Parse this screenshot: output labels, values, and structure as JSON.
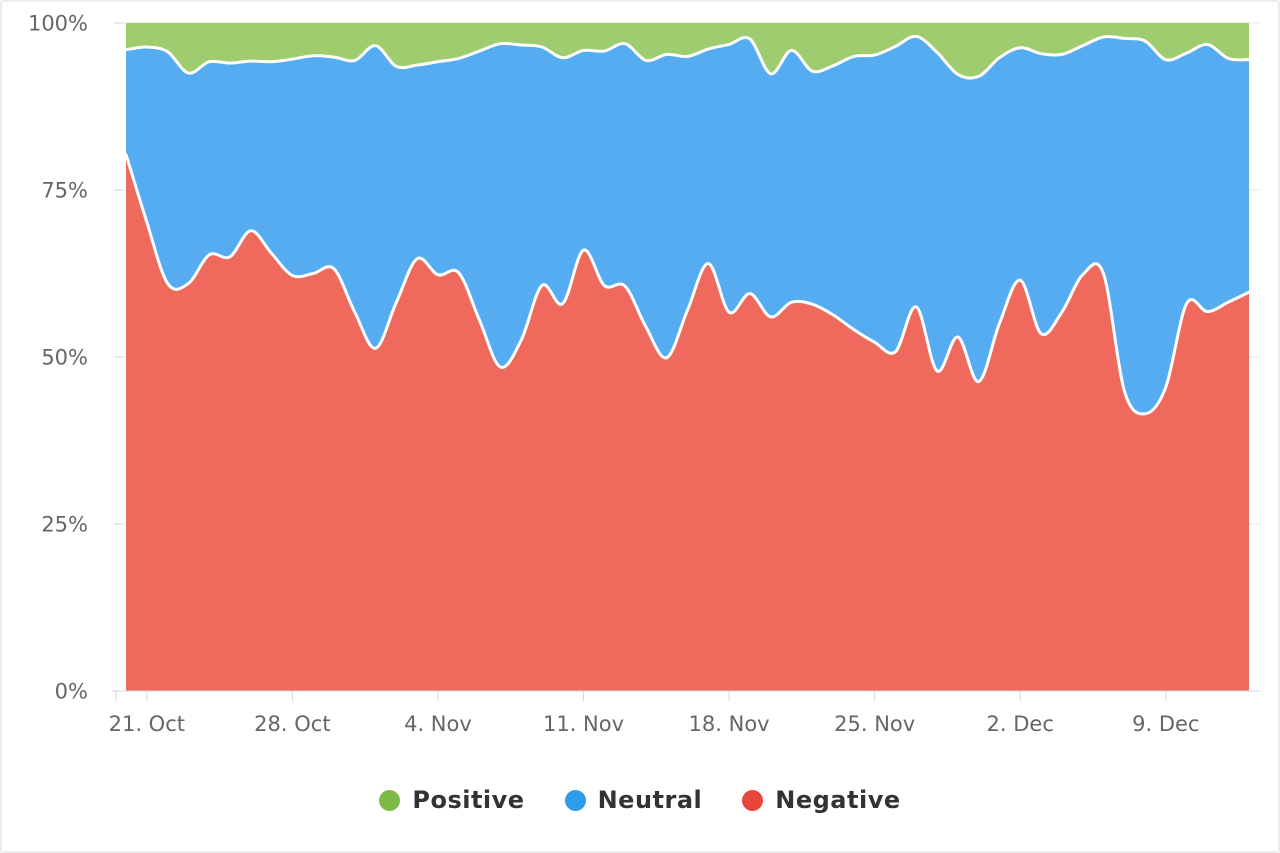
{
  "chart": {
    "y_axis": {
      "tick_labels": [
        "100%",
        "75%",
        "50%",
        "25%",
        "0%"
      ],
      "values": [
        100,
        75,
        50,
        25,
        0
      ]
    },
    "x_axis": {
      "tick_labels": [
        "21. Oct",
        "28. Oct",
        "4. Nov",
        "11. Nov",
        "18. Nov",
        "25. Nov",
        "2. Dec",
        "9. Dec"
      ]
    },
    "legend": [
      {
        "label": "Positive",
        "color": "#7CBA47"
      },
      {
        "label": "Neutral",
        "color": "#2D9CEB"
      },
      {
        "label": "Negative",
        "color": "#E7463C"
      }
    ]
  },
  "colors": {
    "positive_fill": "#9ECC6E",
    "neutral_fill": "#55ACF1",
    "negative_fill": "#EF695D",
    "boundary_stroke": "#FFFFFF",
    "grid_line": "#E6E6E6",
    "y_tick": "#D6D6D6",
    "axis_line": "#CCD6EB",
    "axis_text": "#666666",
    "legend_text": "#333333",
    "background": "#FFFFFF"
  },
  "chart_data": {
    "type": "area",
    "stacking": "percent",
    "title": "",
    "xlabel": "",
    "ylabel": "",
    "ylim": [
      0,
      100
    ],
    "grid": true,
    "legend_position": "bottom",
    "x": [
      "20. Oct",
      "21. Oct",
      "22. Oct",
      "23. Oct",
      "24. Oct",
      "25. Oct",
      "26. Oct",
      "27. Oct",
      "28. Oct",
      "29. Oct",
      "30. Oct",
      "31. Oct",
      "1. Nov",
      "2. Nov",
      "3. Nov",
      "4. Nov",
      "5. Nov",
      "6. Nov",
      "7. Nov",
      "8. Nov",
      "9. Nov",
      "10. Nov",
      "11. Nov",
      "12. Nov",
      "13. Nov",
      "14. Nov",
      "15. Nov",
      "16. Nov",
      "17. Nov",
      "18. Nov",
      "19. Nov",
      "20. Nov",
      "21. Nov",
      "22. Nov",
      "23. Nov",
      "24. Nov",
      "25. Nov",
      "26. Nov",
      "27. Nov",
      "28. Nov",
      "29. Nov",
      "30. Nov",
      "1. Dec",
      "2. Dec",
      "3. Dec",
      "4. Dec",
      "5. Dec",
      "6. Dec",
      "7. Dec",
      "8. Dec",
      "9. Dec",
      "10. Dec",
      "11. Dec",
      "12. Dec",
      "13. Dec"
    ],
    "x_tick_indices": [
      1,
      8,
      15,
      22,
      29,
      36,
      43,
      50
    ],
    "series": [
      {
        "name": "Positive",
        "values": [
          4.0,
          3.6,
          4.3,
          7.5,
          5.8,
          6.0,
          5.7,
          5.8,
          5.4,
          4.9,
          5.1,
          5.6,
          3.4,
          6.5,
          6.3,
          5.8,
          5.3,
          4.2,
          3.1,
          3.3,
          3.6,
          5.2,
          4.1,
          4.2,
          3.1,
          5.6,
          4.7,
          5.0,
          3.9,
          3.2,
          2.4,
          7.6,
          4.1,
          7.2,
          6.4,
          5.0,
          4.8,
          3.5,
          2.0,
          4.4,
          7.7,
          8.0,
          5.2,
          3.7,
          4.6,
          4.7,
          3.4,
          2.1,
          2.3,
          2.7,
          5.5,
          4.5,
          3.2,
          5.3,
          5.5
        ]
      },
      {
        "name": "Neutral",
        "values": [
          15.7,
          26.2,
          34.7,
          31.5,
          28.9,
          29.0,
          25.4,
          28.7,
          32.4,
          32.6,
          31.7,
          37.7,
          45.3,
          35.3,
          29.0,
          31.9,
          32.1,
          40.3,
          48.4,
          44.2,
          35.7,
          36.8,
          29.9,
          35.1,
          36.3,
          39.9,
          45.4,
          38.0,
          32.1,
          40.1,
          38.1,
          36.4,
          37.7,
          34.9,
          37.3,
          40.9,
          43.0,
          45.7,
          40.5,
          47.7,
          39.3,
          45.7,
          39.8,
          34.8,
          41.9,
          38.6,
          34.3,
          35.4,
          52.7,
          55.8,
          49.0,
          37.5,
          40.0,
          36.5,
          34.8
        ]
      },
      {
        "name": "Negative",
        "values": [
          80.3,
          70.2,
          61.0,
          61.0,
          65.3,
          65.0,
          68.9,
          65.5,
          62.2,
          62.5,
          63.2,
          56.7,
          51.3,
          58.2,
          64.7,
          62.3,
          62.6,
          55.5,
          48.5,
          52.5,
          60.7,
          58.0,
          66.0,
          60.7,
          60.6,
          54.5,
          49.9,
          57.0,
          64.0,
          56.7,
          59.5,
          56.0,
          58.2,
          57.9,
          56.3,
          54.1,
          52.2,
          50.8,
          57.5,
          47.9,
          53.0,
          46.3,
          55.0,
          61.5,
          53.5,
          56.7,
          62.3,
          62.5,
          45.0,
          41.5,
          45.5,
          58.0,
          56.8,
          58.2,
          59.7
        ]
      }
    ]
  }
}
